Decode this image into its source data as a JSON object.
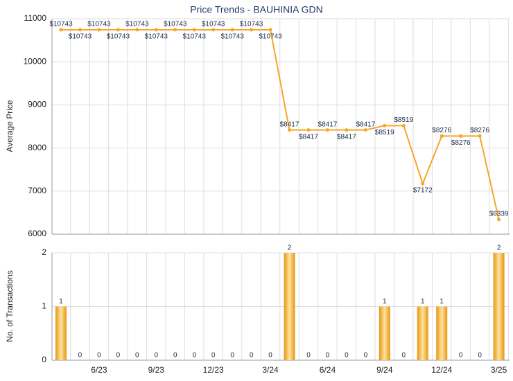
{
  "chart_data": [
    {
      "type": "line",
      "title": "Price Trends - BAUHINIA GDN",
      "y_label": "Average Price",
      "color": "#f5a623",
      "grid": true,
      "ylim": [
        6000,
        11000
      ],
      "yticks": [
        6000,
        7000,
        8000,
        9000,
        10000,
        11000
      ],
      "values": [
        10743,
        10743,
        10743,
        10743,
        10743,
        10743,
        10743,
        10743,
        10743,
        10743,
        10743,
        10743,
        8417,
        8417,
        8417,
        8417,
        8417,
        8519,
        8519,
        7172,
        8276,
        8276,
        8276,
        6339
      ],
      "value_labels": [
        "$10743",
        "$10743",
        "$10743",
        "$10743",
        "$10743",
        "$10743",
        "$10743",
        "$10743",
        "$10743",
        "$10743",
        "$10743",
        "$10743",
        "$8417",
        "$8417",
        "$8417",
        "$8417",
        "$8417",
        "$8519",
        "$8519",
        "$7172",
        "$8276",
        "$8276",
        "$8276",
        "$6339"
      ]
    },
    {
      "type": "bar",
      "y_label": "No. of Transactions",
      "color": "#f5a623",
      "grid": true,
      "ylim": [
        0,
        2
      ],
      "yticks": [
        0,
        1,
        2
      ],
      "categories": [
        null,
        null,
        "6/23",
        null,
        null,
        "9/23",
        null,
        null,
        "12/23",
        null,
        null,
        "3/24",
        null,
        null,
        "6/24",
        null,
        null,
        "9/24",
        null,
        null,
        "12/24",
        null,
        null,
        "3/25"
      ],
      "values": [
        1,
        0,
        0,
        0,
        0,
        0,
        0,
        0,
        0,
        0,
        0,
        0,
        2,
        0,
        0,
        0,
        0,
        1,
        0,
        1,
        1,
        0,
        0,
        2
      ]
    }
  ]
}
